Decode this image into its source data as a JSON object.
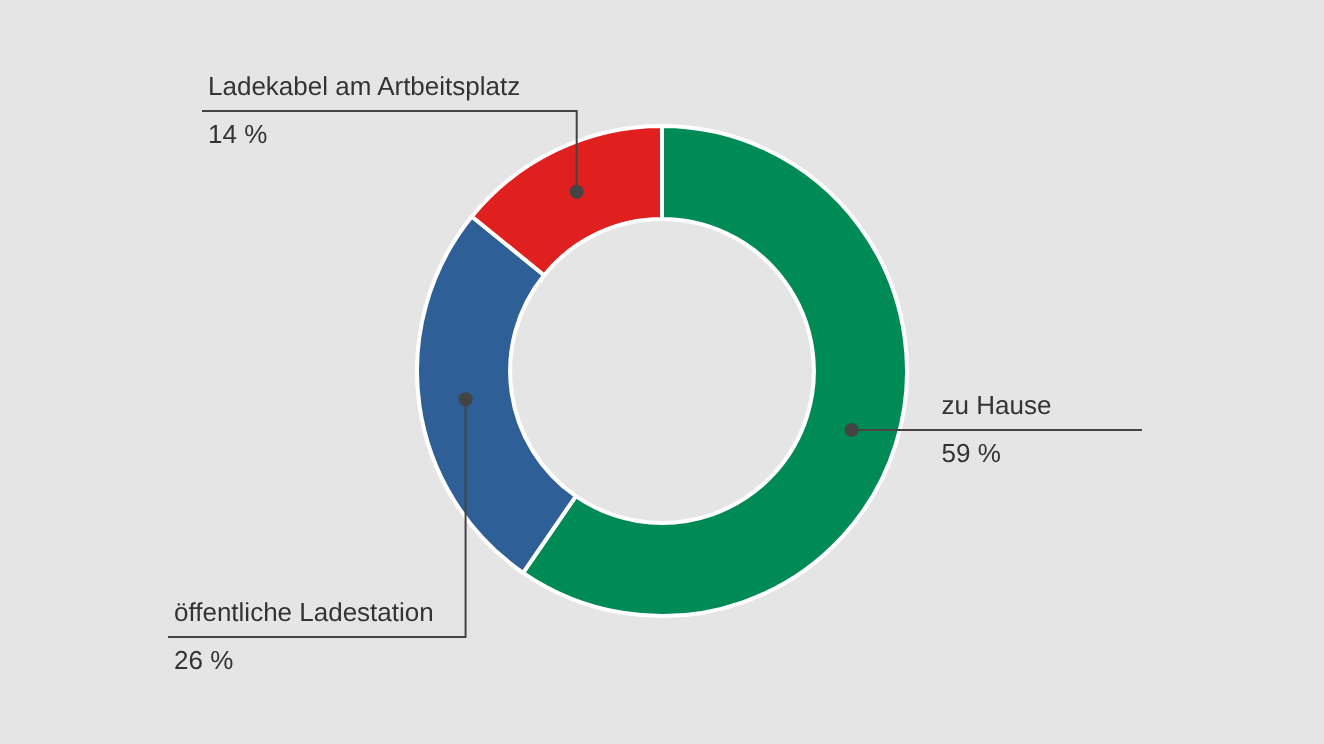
{
  "chart_data": {
    "type": "donut",
    "categories": [
      "zu Hause",
      "öffentliche Ladestation",
      "Ladekabel am Artbeitsplatz"
    ],
    "values": [
      59,
      26,
      14
    ],
    "colors": [
      "#008a56",
      "#2e5f96",
      "#e0201f"
    ],
    "value_labels": [
      "59 %",
      "26 %",
      "14 %"
    ],
    "legend": false
  }
}
